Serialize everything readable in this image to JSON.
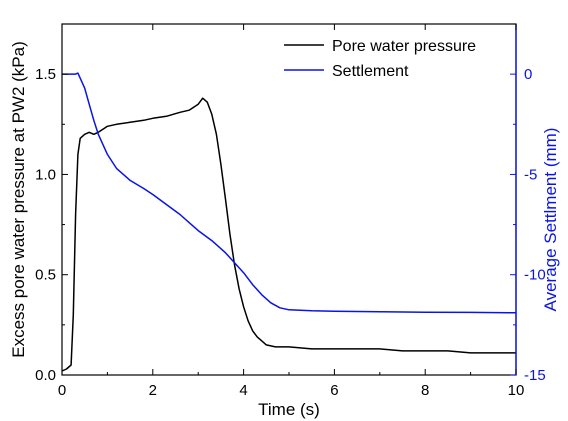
{
  "chart_data": {
    "type": "line",
    "xlabel": "Time (s)",
    "ylabel_left": "Excess pore water pressure at PW2 (kPa)",
    "ylabel_right": "Average Settlment (mm)",
    "xlim": [
      0,
      10
    ],
    "ylim_left": [
      0,
      1.75
    ],
    "ylim_right": [
      -15,
      2.5
    ],
    "x_ticks": [
      "0",
      "2",
      "4",
      "6",
      "8",
      "10"
    ],
    "y_left_ticks": [
      "0.0",
      "0.5",
      "1.0",
      "1.5"
    ],
    "y_right_ticks": [
      "0",
      "-5",
      "-10",
      "-15"
    ],
    "grid": false,
    "legend_position": "top-right",
    "colors": {
      "pore": "#000000",
      "settlement": "#0a14e6",
      "right_axis": "#0a14e6",
      "left_axis": "#000000"
    },
    "series": [
      {
        "name": "Pore water pressure",
        "axis": "left",
        "x": [
          0,
          0.1,
          0.2,
          0.25,
          0.3,
          0.35,
          0.4,
          0.5,
          0.6,
          0.7,
          0.8,
          1.0,
          1.2,
          1.5,
          1.8,
          2.0,
          2.3,
          2.6,
          2.8,
          3.0,
          3.1,
          3.2,
          3.3,
          3.4,
          3.5,
          3.6,
          3.7,
          3.8,
          3.9,
          4.0,
          4.1,
          4.2,
          4.3,
          4.4,
          4.5,
          4.7,
          5.0,
          5.5,
          6.0,
          6.5,
          7.0,
          7.5,
          8.0,
          8.5,
          9.0,
          9.5,
          10.0
        ],
        "y": [
          0.02,
          0.03,
          0.05,
          0.3,
          0.8,
          1.1,
          1.18,
          1.2,
          1.21,
          1.2,
          1.21,
          1.24,
          1.25,
          1.26,
          1.27,
          1.28,
          1.29,
          1.31,
          1.32,
          1.35,
          1.38,
          1.36,
          1.3,
          1.2,
          1.05,
          0.88,
          0.7,
          0.55,
          0.43,
          0.34,
          0.27,
          0.22,
          0.19,
          0.17,
          0.15,
          0.14,
          0.14,
          0.13,
          0.13,
          0.13,
          0.13,
          0.12,
          0.12,
          0.12,
          0.11,
          0.11,
          0.11
        ]
      },
      {
        "name": "Settlement",
        "axis": "right",
        "x": [
          0,
          0.2,
          0.3,
          0.35,
          0.4,
          0.5,
          0.6,
          0.7,
          0.8,
          1.0,
          1.2,
          1.5,
          1.8,
          2.0,
          2.3,
          2.6,
          2.8,
          3.0,
          3.3,
          3.6,
          3.8,
          4.0,
          4.2,
          4.4,
          4.6,
          4.8,
          5.0,
          5.5,
          6.0,
          7.0,
          8.0,
          9.0,
          10.0
        ],
        "y": [
          0,
          0,
          0,
          0.05,
          -0.2,
          -0.7,
          -1.5,
          -2.3,
          -3.0,
          -4.0,
          -4.7,
          -5.3,
          -5.7,
          -6.0,
          -6.5,
          -7.0,
          -7.4,
          -7.8,
          -8.3,
          -8.9,
          -9.4,
          -9.9,
          -10.5,
          -11.0,
          -11.4,
          -11.65,
          -11.75,
          -11.8,
          -11.82,
          -11.85,
          -11.87,
          -11.88,
          -11.9
        ]
      }
    ]
  }
}
